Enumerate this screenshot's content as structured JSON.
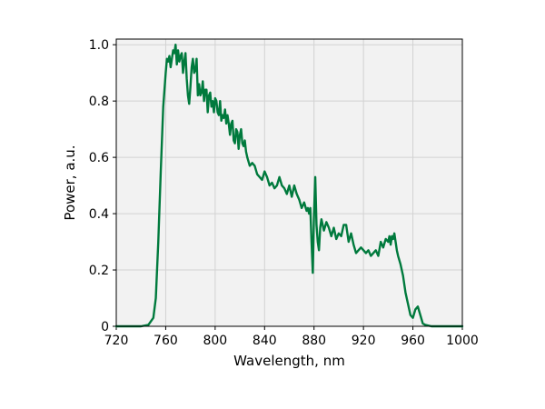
{
  "chart_data": {
    "type": "line",
    "xlabel": "Wavelength, nm",
    "ylabel": "Power, a.u.",
    "xlim": [
      720,
      1000
    ],
    "ylim": [
      0,
      1.0
    ],
    "x_ticks": [
      720,
      760,
      800,
      840,
      880,
      920,
      960,
      1000
    ],
    "y_ticks": [
      0,
      0.2,
      0.4,
      0.6,
      0.8,
      1.0
    ],
    "x_tick_labels": [
      "720",
      "760",
      "800",
      "840",
      "880",
      "920",
      "960",
      "1000"
    ],
    "y_tick_labels": [
      "0",
      "0.2",
      "0.4",
      "0.6",
      "0.8",
      "1.0"
    ],
    "grid": true,
    "line_color": "#007a3d",
    "background_color": "#f2f2f2",
    "series": [
      {
        "x": [
          720,
          730,
          740,
          746,
          750,
          752,
          754,
          756,
          758,
          760,
          761,
          762,
          763,
          764,
          765,
          766,
          767,
          768,
          769,
          770,
          771,
          772,
          773,
          774,
          775,
          776,
          777,
          778,
          779,
          780,
          781,
          782,
          783,
          784,
          785,
          786,
          787,
          788,
          789,
          790,
          791,
          792,
          793,
          794,
          795,
          796,
          797,
          798,
          799,
          800,
          801,
          802,
          803,
          804,
          805,
          806,
          807,
          808,
          809,
          810,
          811,
          812,
          813,
          814,
          815,
          816,
          817,
          818,
          819,
          820,
          821,
          822,
          823,
          824,
          825,
          826,
          828,
          830,
          832,
          834,
          836,
          838,
          840,
          842,
          844,
          846,
          848,
          850,
          852,
          854,
          856,
          858,
          860,
          862,
          864,
          866,
          868,
          870,
          872,
          874,
          875,
          876,
          877,
          878,
          879,
          880,
          881,
          882,
          883,
          884,
          885,
          886,
          888,
          890,
          892,
          894,
          896,
          898,
          900,
          902,
          904,
          906,
          908,
          910,
          912,
          914,
          916,
          918,
          920,
          922,
          924,
          926,
          928,
          930,
          932,
          934,
          936,
          938,
          940,
          941,
          942,
          943,
          944,
          945,
          946,
          947,
          948,
          950,
          952,
          954,
          956,
          958,
          960,
          962,
          964,
          966,
          968,
          970,
          975,
          980,
          990,
          1000
        ],
        "y": [
          0.0,
          0.0,
          0.0,
          0.005,
          0.03,
          0.1,
          0.3,
          0.55,
          0.78,
          0.9,
          0.95,
          0.94,
          0.96,
          0.92,
          0.95,
          0.98,
          0.97,
          1.0,
          0.93,
          0.98,
          0.94,
          0.96,
          0.97,
          0.9,
          0.94,
          0.97,
          0.88,
          0.82,
          0.79,
          0.85,
          0.92,
          0.95,
          0.9,
          0.91,
          0.95,
          0.82,
          0.86,
          0.82,
          0.83,
          0.87,
          0.8,
          0.84,
          0.84,
          0.76,
          0.82,
          0.83,
          0.78,
          0.8,
          0.76,
          0.81,
          0.8,
          0.76,
          0.75,
          0.8,
          0.73,
          0.75,
          0.74,
          0.77,
          0.72,
          0.75,
          0.72,
          0.68,
          0.72,
          0.73,
          0.66,
          0.65,
          0.7,
          0.69,
          0.63,
          0.68,
          0.7,
          0.65,
          0.64,
          0.66,
          0.62,
          0.6,
          0.57,
          0.58,
          0.57,
          0.54,
          0.53,
          0.52,
          0.55,
          0.53,
          0.5,
          0.51,
          0.49,
          0.5,
          0.53,
          0.5,
          0.49,
          0.47,
          0.5,
          0.46,
          0.5,
          0.47,
          0.45,
          0.42,
          0.44,
          0.41,
          0.42,
          0.4,
          0.42,
          0.3,
          0.19,
          0.4,
          0.53,
          0.36,
          0.3,
          0.27,
          0.35,
          0.38,
          0.34,
          0.37,
          0.35,
          0.32,
          0.35,
          0.31,
          0.33,
          0.32,
          0.36,
          0.36,
          0.3,
          0.33,
          0.29,
          0.26,
          0.27,
          0.28,
          0.27,
          0.26,
          0.27,
          0.25,
          0.26,
          0.27,
          0.25,
          0.3,
          0.28,
          0.31,
          0.3,
          0.32,
          0.29,
          0.32,
          0.31,
          0.33,
          0.3,
          0.27,
          0.25,
          0.22,
          0.18,
          0.12,
          0.08,
          0.04,
          0.03,
          0.06,
          0.07,
          0.04,
          0.01,
          0.005,
          0.0,
          0.0,
          0.0,
          0.0
        ]
      }
    ]
  }
}
